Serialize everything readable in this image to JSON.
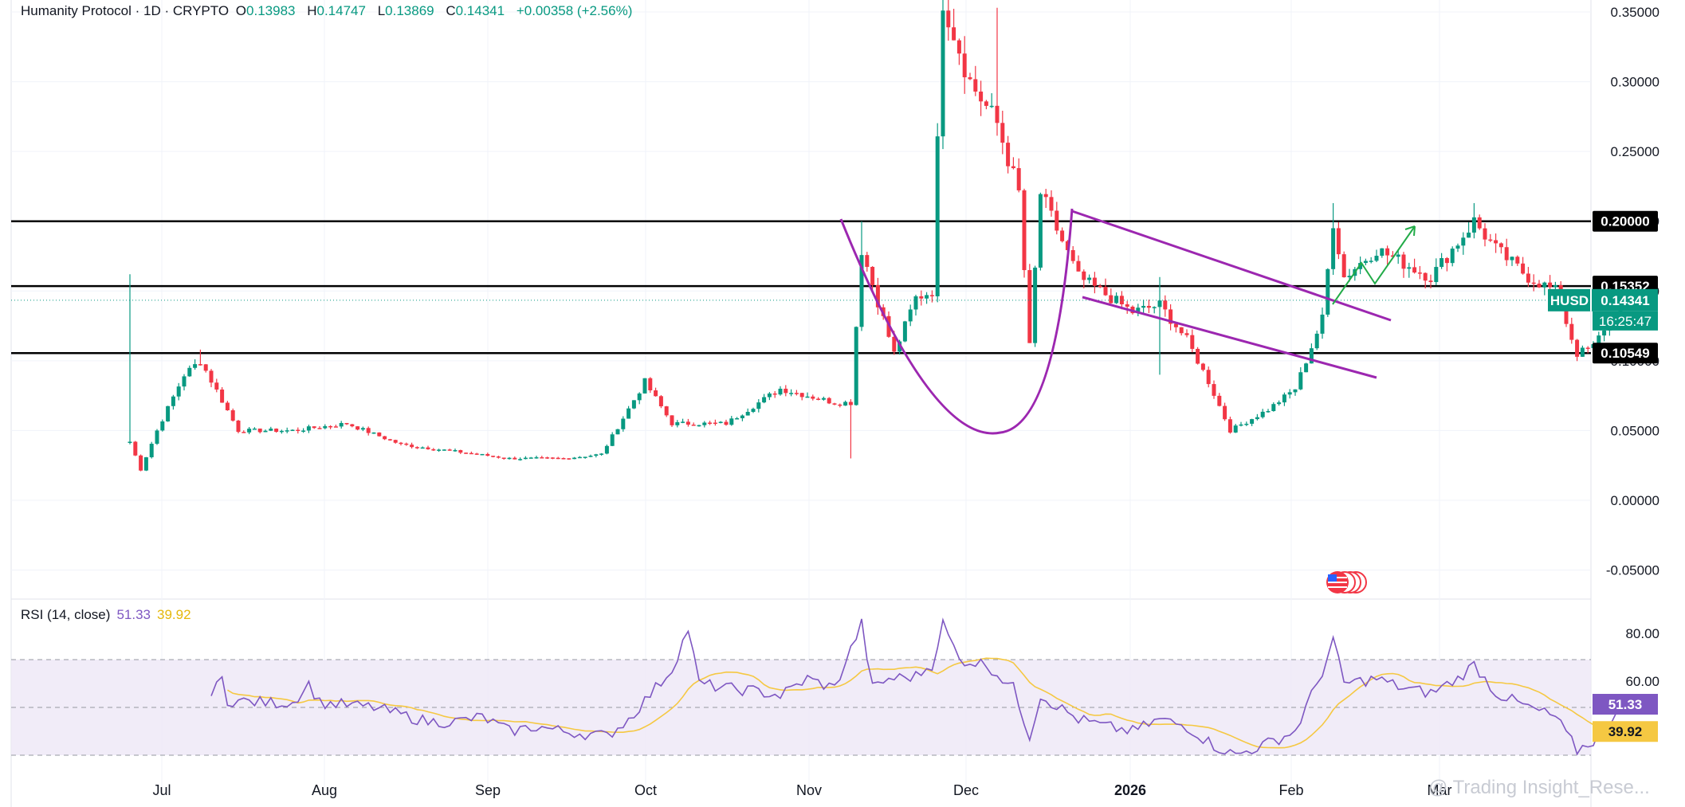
{
  "header": {
    "symbol": "Humanity Protocol · 1D · CRYPTO",
    "o_label": "O",
    "o": "0.13983",
    "h_label": "H",
    "h": "0.14747",
    "l_label": "L",
    "l": "0.13869",
    "c_label": "C",
    "c": "0.14341",
    "change": "+0.00358 (+2.56%)"
  },
  "rsi_header": {
    "name": "RSI (14, close)",
    "rsi": "51.33",
    "ma": "39.92"
  },
  "watermark": "@ Trading Insight_Rese...",
  "colors": {
    "up": "#089981",
    "down": "#f23645",
    "rsi": "#7e57c2",
    "rsi_ma": "#f5c842",
    "pattern": "#9c27b0",
    "arrow": "#22ab48",
    "band": "#ede7f6"
  },
  "chart_data": {
    "type": "candlestick",
    "price_axis": {
      "ticks": [
        "0.35000",
        "0.30000",
        "0.25000",
        "0.20000",
        "0.15000",
        "0.10000",
        "0.05000",
        "0.00000",
        "-0.05000"
      ],
      "range": [
        -0.06,
        0.362
      ]
    },
    "time_axis": {
      "ticks": [
        "Jul",
        "Aug",
        "Sep",
        "Oct",
        "Nov",
        "Dec",
        "2026",
        "Feb",
        "Mar"
      ]
    },
    "levels": [
      {
        "label": "0.20000",
        "value": 0.2
      },
      {
        "label": "0.15352",
        "value": 0.15352
      },
      {
        "label": "0.10549",
        "value": 0.10549
      }
    ],
    "last_price": {
      "symbol": "HUSD",
      "value": "0.14341",
      "countdown": "16:25:47"
    },
    "candle_anchors": [
      {
        "i": 0,
        "c": 0.042
      },
      {
        "i": 2,
        "c": 0.022
      },
      {
        "i": 5,
        "c": 0.05
      },
      {
        "i": 10,
        "c": 0.09
      },
      {
        "i": 13,
        "c": 0.1
      },
      {
        "i": 20,
        "c": 0.05
      },
      {
        "i": 30,
        "c": 0.05
      },
      {
        "i": 40,
        "c": 0.055
      },
      {
        "i": 50,
        "c": 0.04
      },
      {
        "i": 60,
        "c": 0.035
      },
      {
        "i": 70,
        "c": 0.03
      },
      {
        "i": 80,
        "c": 0.03
      },
      {
        "i": 87,
        "c": 0.033
      },
      {
        "i": 95,
        "c": 0.085
      },
      {
        "i": 100,
        "c": 0.055
      },
      {
        "i": 110,
        "c": 0.055
      },
      {
        "i": 120,
        "c": 0.08
      },
      {
        "i": 130,
        "c": 0.07
      },
      {
        "i": 133,
        "c": 0.07
      },
      {
        "i": 135,
        "c": 0.18
      },
      {
        "i": 141,
        "c": 0.105
      },
      {
        "i": 145,
        "c": 0.145
      },
      {
        "i": 148,
        "c": 0.15
      },
      {
        "i": 150,
        "c": 0.36
      },
      {
        "i": 155,
        "c": 0.3
      },
      {
        "i": 160,
        "c": 0.27
      },
      {
        "i": 164,
        "c": 0.22
      },
      {
        "i": 166,
        "c": 0.11
      },
      {
        "i": 168,
        "c": 0.22
      },
      {
        "i": 175,
        "c": 0.16
      },
      {
        "i": 185,
        "c": 0.135
      },
      {
        "i": 190,
        "c": 0.14
      },
      {
        "i": 195,
        "c": 0.115
      },
      {
        "i": 199,
        "c": 0.085
      },
      {
        "i": 203,
        "c": 0.05
      },
      {
        "i": 210,
        "c": 0.065
      },
      {
        "i": 215,
        "c": 0.08
      },
      {
        "i": 220,
        "c": 0.13
      },
      {
        "i": 222,
        "c": 0.2
      },
      {
        "i": 224,
        "c": 0.16
      },
      {
        "i": 230,
        "c": 0.18
      },
      {
        "i": 240,
        "c": 0.16
      },
      {
        "i": 248,
        "c": 0.2
      },
      {
        "i": 252,
        "c": 0.18
      },
      {
        "i": 258,
        "c": 0.16
      },
      {
        "i": 263,
        "c": 0.15
      },
      {
        "i": 267,
        "c": 0.105
      },
      {
        "i": 270,
        "c": 0.11
      },
      {
        "i": 273,
        "c": 0.13
      },
      {
        "i": 275,
        "c": 0.1434
      }
    ],
    "spikes": [
      {
        "i": 0,
        "h": 0.162
      },
      {
        "i": 13,
        "h": 0.108
      },
      {
        "i": 135,
        "h": 0.2
      },
      {
        "i": 150,
        "h": 0.365
      },
      {
        "i": 160,
        "h": 0.353
      },
      {
        "i": 190,
        "h": 0.16
      },
      {
        "i": 222,
        "h": 0.213
      },
      {
        "i": 248,
        "h": 0.213
      }
    ],
    "dips": [
      {
        "i": 133,
        "l": 0.03
      },
      {
        "i": 190,
        "l": 0.09
      }
    ],
    "rsi": {
      "range": [
        0,
        100
      ],
      "ticks": [
        "80.00",
        "60.00"
      ],
      "band": [
        30,
        70
      ],
      "midline": 50,
      "last": "51.33",
      "ma_last": "39.92",
      "anchors": [
        {
          "i": 15,
          "v": 55
        },
        {
          "i": 17,
          "v": 62
        },
        {
          "i": 18,
          "v": 53
        },
        {
          "i": 25,
          "v": 52
        },
        {
          "i": 30,
          "v": 52
        },
        {
          "i": 33,
          "v": 60
        },
        {
          "i": 35,
          "v": 52
        },
        {
          "i": 45,
          "v": 50
        },
        {
          "i": 55,
          "v": 44
        },
        {
          "i": 60,
          "v": 44
        },
        {
          "i": 65,
          "v": 46
        },
        {
          "i": 70,
          "v": 40
        },
        {
          "i": 75,
          "v": 42
        },
        {
          "i": 80,
          "v": 40
        },
        {
          "i": 88,
          "v": 38
        },
        {
          "i": 92,
          "v": 45
        },
        {
          "i": 100,
          "v": 66
        },
        {
          "i": 103,
          "v": 83
        },
        {
          "i": 105,
          "v": 60
        },
        {
          "i": 110,
          "v": 58
        },
        {
          "i": 115,
          "v": 57
        },
        {
          "i": 120,
          "v": 55
        },
        {
          "i": 125,
          "v": 62
        },
        {
          "i": 130,
          "v": 58
        },
        {
          "i": 135,
          "v": 85
        },
        {
          "i": 137,
          "v": 58
        },
        {
          "i": 140,
          "v": 62
        },
        {
          "i": 145,
          "v": 63
        },
        {
          "i": 148,
          "v": 68
        },
        {
          "i": 150,
          "v": 85
        },
        {
          "i": 153,
          "v": 70
        },
        {
          "i": 158,
          "v": 68
        },
        {
          "i": 163,
          "v": 58
        },
        {
          "i": 166,
          "v": 38
        },
        {
          "i": 168,
          "v": 55
        },
        {
          "i": 175,
          "v": 45
        },
        {
          "i": 180,
          "v": 42
        },
        {
          "i": 185,
          "v": 40
        },
        {
          "i": 190,
          "v": 45
        },
        {
          "i": 195,
          "v": 42
        },
        {
          "i": 200,
          "v": 34
        },
        {
          "i": 204,
          "v": 30
        },
        {
          "i": 210,
          "v": 35
        },
        {
          "i": 215,
          "v": 40
        },
        {
          "i": 220,
          "v": 65
        },
        {
          "i": 222,
          "v": 78
        },
        {
          "i": 224,
          "v": 60
        },
        {
          "i": 230,
          "v": 62
        },
        {
          "i": 235,
          "v": 58
        },
        {
          "i": 240,
          "v": 56
        },
        {
          "i": 245,
          "v": 62
        },
        {
          "i": 248,
          "v": 68
        },
        {
          "i": 252,
          "v": 56
        },
        {
          "i": 258,
          "v": 50
        },
        {
          "i": 263,
          "v": 46
        },
        {
          "i": 267,
          "v": 32
        },
        {
          "i": 270,
          "v": 36
        },
        {
          "i": 273,
          "v": 44
        },
        {
          "i": 275,
          "v": 51.33
        }
      ]
    }
  }
}
